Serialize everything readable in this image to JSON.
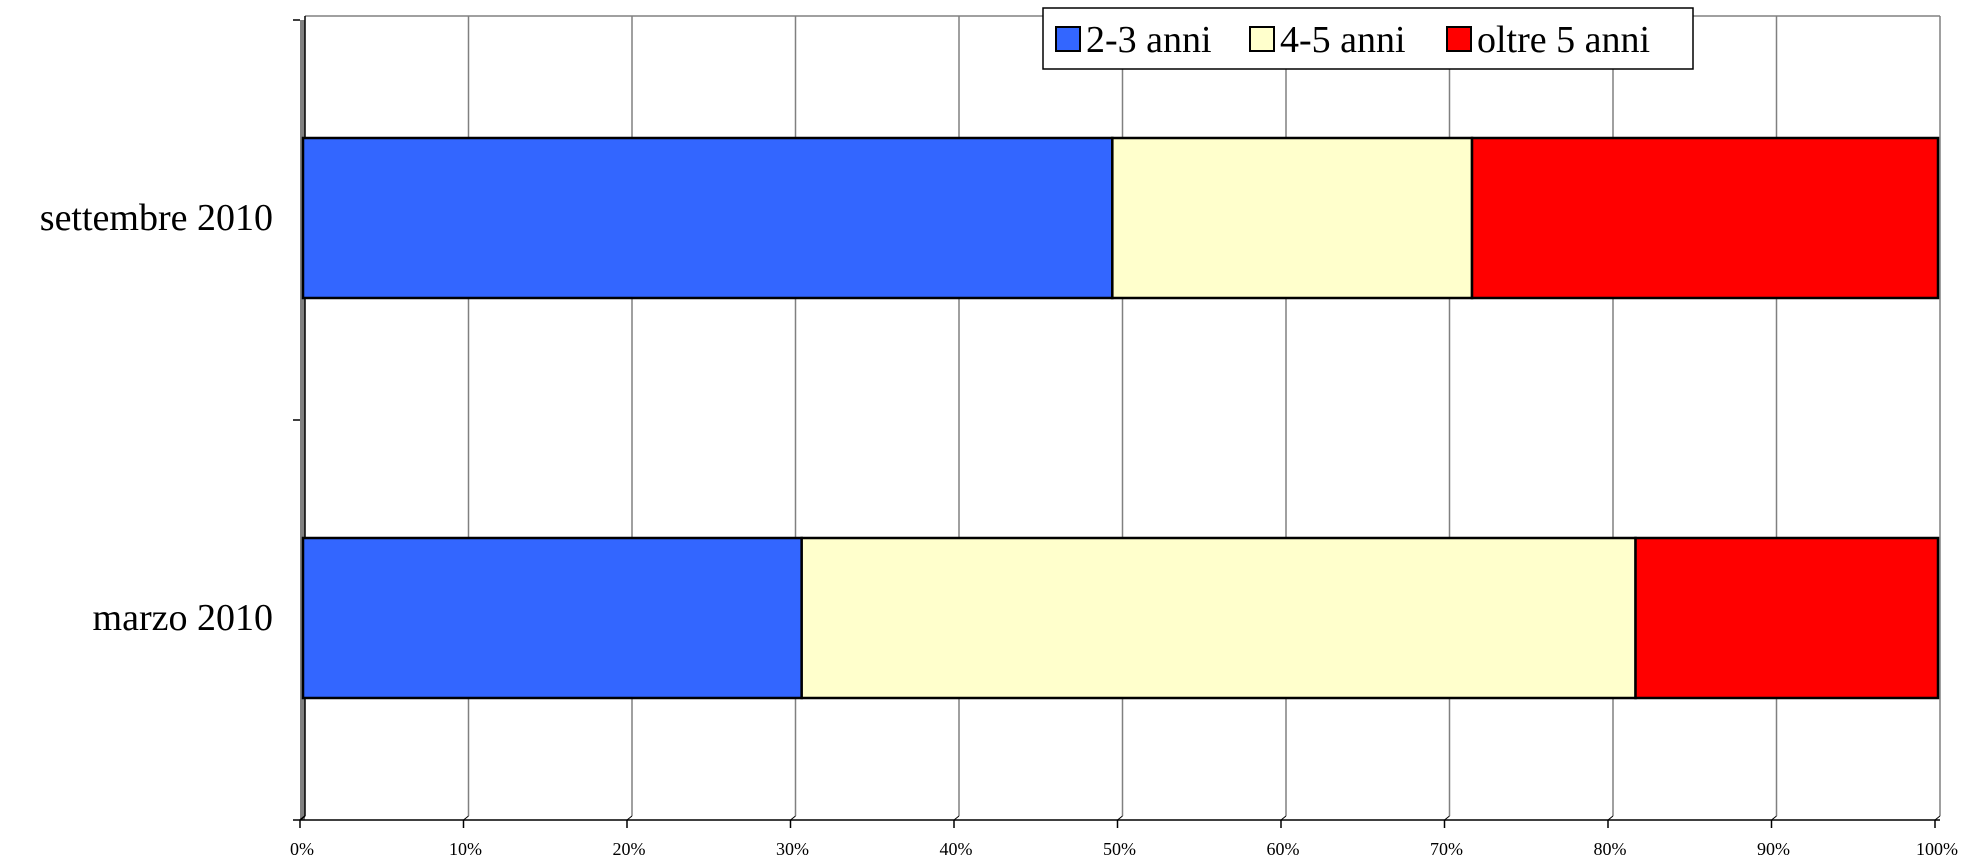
{
  "chart_data": {
    "type": "bar",
    "orientation": "horizontal",
    "stacked": "percent",
    "categories": [
      "settembre 2010",
      "marzo 2010"
    ],
    "series": [
      {
        "name": "2-3 anni",
        "color": "#3366FF",
        "values": [
          49.5,
          30.5
        ]
      },
      {
        "name": "4-5 anni",
        "color": "#FFFFCC",
        "values": [
          22.0,
          51.0
        ]
      },
      {
        "name": "oltre 5 anni",
        "color": "#FF0000",
        "values": [
          28.5,
          18.5
        ]
      }
    ],
    "xlim": [
      0,
      100
    ],
    "xticks": [
      "0%",
      "10%",
      "20%",
      "30%",
      "40%",
      "50%",
      "60%",
      "70%",
      "80%",
      "90%",
      "100%"
    ],
    "grid": true,
    "legend_position": "top-right"
  }
}
